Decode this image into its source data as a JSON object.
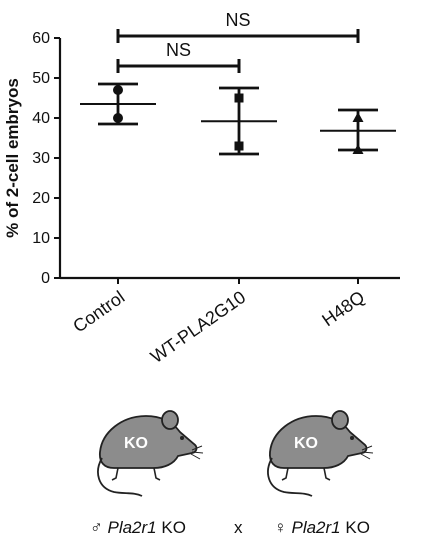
{
  "chart_data": {
    "type": "scatter",
    "title": "",
    "xlabel": "",
    "ylabel": "% of 2-cell embryos",
    "ylim": [
      0,
      60
    ],
    "yticks": [
      "0",
      "10",
      "20",
      "30",
      "40",
      "50",
      "60"
    ],
    "grid": false,
    "legend": "none",
    "categories": [
      "Control",
      "WT-PLA2G10",
      "H48Q"
    ],
    "groups": [
      {
        "category": "Control",
        "marker": "circle",
        "points": [
          47,
          40
        ],
        "mean": 43.5,
        "sd_upper": 48.5,
        "sd_lower": 38.5
      },
      {
        "category": "WT-PLA2G10",
        "marker": "square",
        "points": [
          45,
          33
        ],
        "mean": 39.2,
        "sd_upper": 47.5,
        "sd_lower": 31
      },
      {
        "category": "H48Q",
        "marker": "triangle",
        "points": [
          40,
          32
        ],
        "mean": 36.8,
        "sd_upper": 42,
        "sd_lower": 32
      }
    ],
    "annotations": [
      {
        "from": "Control",
        "to": "H48Q",
        "label": "NS"
      },
      {
        "from": "Control",
        "to": "WT-PLA2G10",
        "label": "NS"
      }
    ]
  },
  "illustration": {
    "mouse_label": "KO",
    "body_color": "#8c8c8c",
    "mouse_count": 2
  },
  "cross": {
    "male_symbol": "♂",
    "male_gene": "Pla2r1",
    "male_suffix": "KO",
    "times": "x",
    "female_symbol": "♀",
    "female_gene": "Pla2r1",
    "female_suffix": "KO"
  }
}
